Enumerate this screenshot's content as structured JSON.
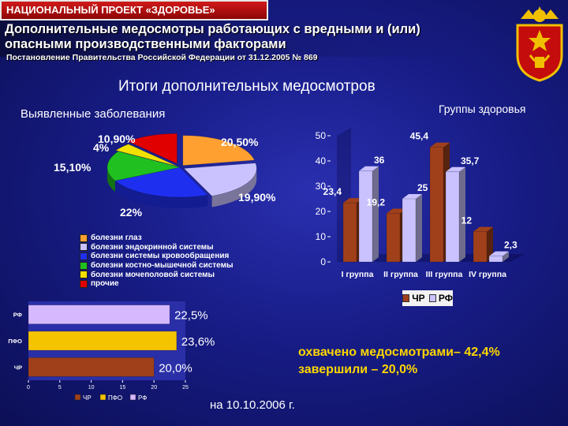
{
  "header": {
    "badge": "НАЦИОНАЛЬНЫЙ ПРОЕКТ «ЗДОРОВЬЕ»",
    "subtitle": "Дополнительные медосмотры работающих с вредными и (или) опасными производственными факторами",
    "decree": "Постановление Правительства Российской Федерации от 31.12.2005 № 869"
  },
  "colors": {
    "pink": "#ff2a6d",
    "orange": "#ffa030",
    "lavender": "#c9c2ff",
    "blue": "#1f2ff0",
    "green": "#20c020",
    "yellow": "#f2e000",
    "red": "#e00000",
    "brown": "#a0401a",
    "lilac": "#d6b8ff",
    "gold": "#f5c400",
    "accent_text": "#ffd700"
  },
  "titles": {
    "results": "Итоги дополнительных медосмотров",
    "diseases": "Выявленные заболевания",
    "health_groups": "Группы здоровья"
  },
  "coverage_text": {
    "line1": "охвачено медосмотрами– 42,4%",
    "line2": "завершили – 20,0%"
  },
  "date": "на 10.10.2006 г.",
  "chart_data": [
    {
      "type": "pie",
      "title": "Выявленные заболевания",
      "categories": [
        "болезни глаз",
        "болезни эндокринной системы",
        "болезни системы кровообращения",
        "болезни костно-мышечной системы",
        "болезни мочеполовой системы",
        "прочие"
      ],
      "values": [
        20.5,
        19.9,
        22,
        15.1,
        4,
        10.9
      ],
      "labels": [
        "20,50%",
        "19,90%",
        "22%",
        "15,10%",
        "4%",
        "10,90%"
      ],
      "colors": [
        "#ffa030",
        "#c9c2ff",
        "#1f2ff0",
        "#20c020",
        "#f2e000",
        "#e00000"
      ],
      "legend": "bottom"
    },
    {
      "type": "bar",
      "title": "Группы здоровья",
      "categories": [
        "I группа",
        "II группа",
        "III группа",
        "IV группа"
      ],
      "series": [
        {
          "name": "ЧР",
          "values": [
            23.4,
            19.2,
            45.4,
            12
          ],
          "labels": [
            "23,4",
            "19,2",
            "45,4",
            "12"
          ]
        },
        {
          "name": "РФ",
          "values": [
            36,
            25,
            35.7,
            2.3
          ],
          "labels": [
            "36",
            "25",
            "35,7",
            "2,3"
          ]
        }
      ],
      "yticks": [
        "0",
        "10",
        "20",
        "30",
        "40",
        "50"
      ],
      "ylim": [
        0,
        50
      ],
      "colors": [
        "#a0401a",
        "#c9c2ff"
      ],
      "legend": "bottom"
    },
    {
      "type": "bar",
      "orientation": "horizontal",
      "categories": [
        "РФ",
        "ПФО",
        "ЧР"
      ],
      "values": [
        22.5,
        23.6,
        20.0
      ],
      "labels": [
        "22,5%",
        "23,6%",
        "20,0%"
      ],
      "legend_entries": [
        "ЧР",
        "ПФО",
        "РФ"
      ],
      "xticks": [
        "0",
        "5",
        "10",
        "15",
        "20",
        "25"
      ],
      "xlim": [
        0,
        25
      ],
      "colors": [
        "#d6b8ff",
        "#f5c400",
        "#a0401a"
      ]
    }
  ]
}
